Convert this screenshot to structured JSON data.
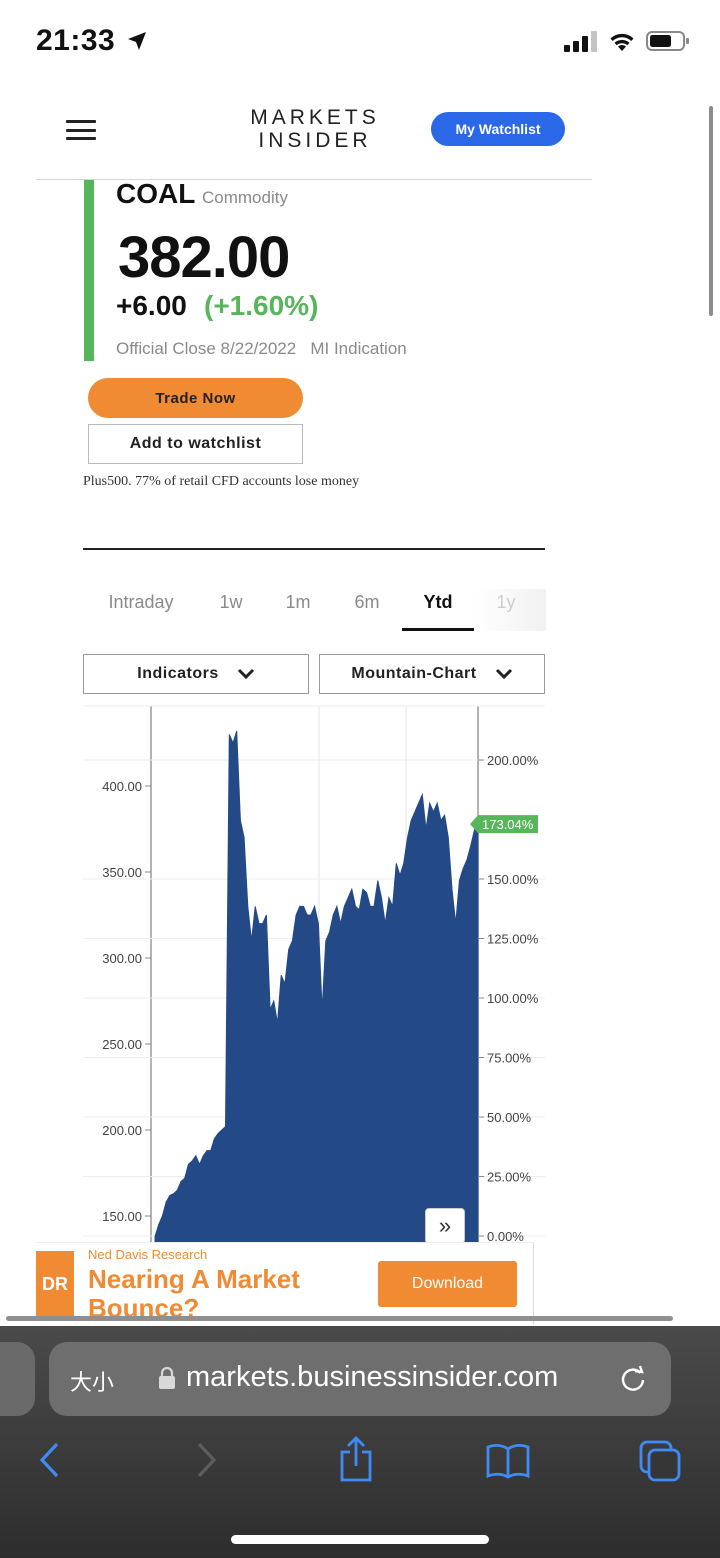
{
  "status_bar": {
    "time": "21:33"
  },
  "header": {
    "logo_line1": "MARKETS",
    "logo_line2": "INSIDER",
    "watchlist_label": "My Watchlist"
  },
  "quote": {
    "symbol": "COAL",
    "asset_type": "Commodity",
    "price": "382.00",
    "change": "+6.00",
    "change_pct": "(+1.60%)",
    "close_info": "Official Close 8/22/2022   MI Indication",
    "trade_label": "Trade Now",
    "add_watchlist_label": "Add to watchlist",
    "disclaimer": "Plus500. 77% of retail CFD accounts lose money"
  },
  "tabs": [
    {
      "label": "Intraday"
    },
    {
      "label": "1w"
    },
    {
      "label": "1m"
    },
    {
      "label": "6m"
    },
    {
      "label": "Ytd"
    },
    {
      "label": "1y"
    }
  ],
  "active_tab": "Ytd",
  "controls": {
    "indicators_label": "Indicators",
    "chart_type_label": "Mountain-Chart"
  },
  "chart_data": {
    "type": "area",
    "color": "#234a86",
    "left_axis": {
      "ticks": [
        "400.00",
        "350.00",
        "300.00",
        "250.00",
        "200.00",
        "150.00"
      ],
      "values": [
        400,
        350,
        300,
        250,
        200,
        150
      ]
    },
    "right_axis": {
      "ticks": [
        "200.00%",
        "150.00%",
        "125.00%",
        "100.00%",
        "75.00%",
        "50.00%",
        "25.00%",
        "0.00%"
      ],
      "values": [
        200,
        150,
        125,
        100,
        75,
        50,
        25,
        0
      ]
    },
    "current_marker": "173.04%",
    "values": [
      138,
      145,
      150,
      158,
      162,
      163,
      165,
      170,
      172,
      180,
      182,
      185,
      180,
      185,
      188,
      188,
      195,
      198,
      200,
      202,
      430,
      425,
      432,
      380,
      370,
      330,
      310,
      330,
      320,
      320,
      325,
      270,
      275,
      262,
      290,
      285,
      305,
      310,
      325,
      330,
      330,
      325,
      325,
      330,
      320,
      270,
      310,
      315,
      325,
      330,
      320,
      330,
      335,
      340,
      330,
      328,
      340,
      338,
      330,
      330,
      345,
      335,
      320,
      335,
      330,
      355,
      348,
      355,
      370,
      380,
      385,
      390,
      395,
      375,
      390,
      385,
      390,
      380,
      383,
      370,
      340,
      320,
      345,
      352,
      357,
      365,
      374,
      382
    ]
  },
  "ad": {
    "logo_text": "DR",
    "sponsor": "Ned Davis Research",
    "headline": "Nearing A Market Bounce?",
    "cta": "Download"
  },
  "browser": {
    "text_size_label": "大小",
    "url": "markets.businessinsider.com"
  },
  "icons": {
    "location": "location-arrow-icon",
    "signal": "cellular-signal-icon",
    "wifi": "wifi-icon",
    "battery": "battery-icon",
    "menu": "hamburger-menu-icon",
    "chevron": "chevron-down-icon",
    "expand": "double-chevron-right-icon",
    "lock": "lock-icon",
    "reload": "reload-icon",
    "back": "back-arrow-icon",
    "forward": "forward-arrow-icon",
    "share": "share-icon",
    "bookmarks": "bookmarks-book-icon",
    "tabs": "tabs-icon"
  }
}
